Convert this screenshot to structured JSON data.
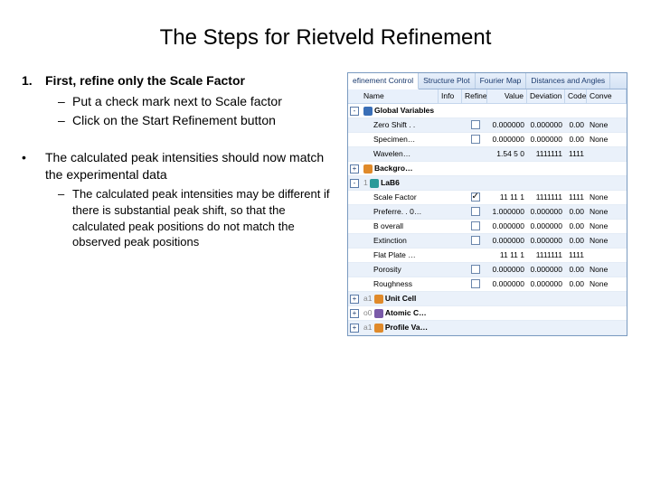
{
  "title": "The Steps for Rietveld Refinement",
  "text": {
    "step_num": "1.",
    "step_title": "First, refine only the Scale Factor",
    "sub_a": "Put a check mark next to Scale factor",
    "sub_b": "Click on the Start Refinement button",
    "bullet": "The calculated peak intensities should now match the experimental data",
    "bullet_sub": "The calculated peak intensities may be different if there is substantial peak shift, so that the calculated peak positions do not match the observed peak positions"
  },
  "panel": {
    "tabs": [
      "efinement Control",
      "Structure Plot",
      "Fourier Map",
      "Distances and Angles"
    ],
    "active_tab": 0,
    "headers": {
      "name": "Name",
      "info": "Info",
      "refine": "Refine",
      "value": "Value",
      "deviation": "Deviation",
      "code": "Code",
      "conv": "Conve"
    },
    "rows": [
      {
        "type": "group",
        "expand": "-",
        "icon": "blue",
        "name": "Global Variables",
        "bold": true,
        "band": false
      },
      {
        "type": "leaf",
        "name": "Zero Shift . .",
        "refine": false,
        "value": "0.000000",
        "dev": "0.000000",
        "code": "0.00",
        "conv": "None",
        "band": true
      },
      {
        "type": "leaf",
        "name": "Specimen…",
        "refine": false,
        "value": "0.000000",
        "dev": "0.000000",
        "code": "0.00",
        "conv": "None",
        "band": false
      },
      {
        "type": "leaf",
        "name": "Wavelen…",
        "refine": "",
        "value": "1.54 5 0",
        "dev": "1111111",
        "code": "1111",
        "conv": "",
        "band": true
      },
      {
        "type": "group",
        "expand": "+",
        "icon": "orange",
        "name": "Backgro…",
        "bold": true,
        "band": false
      },
      {
        "type": "group",
        "expand": "-",
        "icon": "teal",
        "name": "LaB6",
        "idx": "1",
        "bold": true,
        "band": true
      },
      {
        "type": "leaf",
        "name": "Scale Factor",
        "refine": true,
        "value": "11 11 1",
        "dev": "1111111",
        "code": "1111",
        "conv": "None",
        "band": false
      },
      {
        "type": "leaf",
        "name": "Preferre. . 0…",
        "refine": false,
        "value": "1.000000",
        "dev": "0.000000",
        "code": "0.00",
        "conv": "None",
        "band": true
      },
      {
        "type": "leaf",
        "name": "B overall",
        "refine": false,
        "value": "0.000000",
        "dev": "0.000000",
        "code": "0.00",
        "conv": "None",
        "band": false
      },
      {
        "type": "leaf",
        "name": "Extinction",
        "refine": false,
        "value": "0.000000",
        "dev": "0.000000",
        "code": "0.00",
        "conv": "None",
        "band": true
      },
      {
        "type": "leaf",
        "name": "Flat Plate …",
        "refine": "",
        "value": "11 11 1",
        "dev": "1111111",
        "code": "1111",
        "conv": "",
        "band": false
      },
      {
        "type": "leaf",
        "name": "Porosity",
        "refine": false,
        "value": "0.000000",
        "dev": "0.000000",
        "code": "0.00",
        "conv": "None",
        "band": true
      },
      {
        "type": "leaf",
        "name": "Roughness",
        "refine": false,
        "value": "0.000000",
        "dev": "0.000000",
        "code": "0.00",
        "conv": "None",
        "band": false
      },
      {
        "type": "group",
        "expand": "+",
        "icon": "orange",
        "name": "Unit Cell",
        "idx": "a1",
        "bold": true,
        "band": true
      },
      {
        "type": "group",
        "expand": "+",
        "icon": "purple",
        "name": "Atomic C…",
        "idx": "o0",
        "bold": true,
        "band": false
      },
      {
        "type": "group",
        "expand": "+",
        "icon": "orange",
        "name": "Profile Va…",
        "idx": "a1",
        "bold": true,
        "band": true
      }
    ],
    "colors": {
      "tab_bg_top": "#e8f0fb",
      "tab_bg_bot": "#d4e2f4",
      "border": "#7a9ac0",
      "band": "#eaf1fa",
      "tab_text": "#1a3a6e"
    }
  }
}
